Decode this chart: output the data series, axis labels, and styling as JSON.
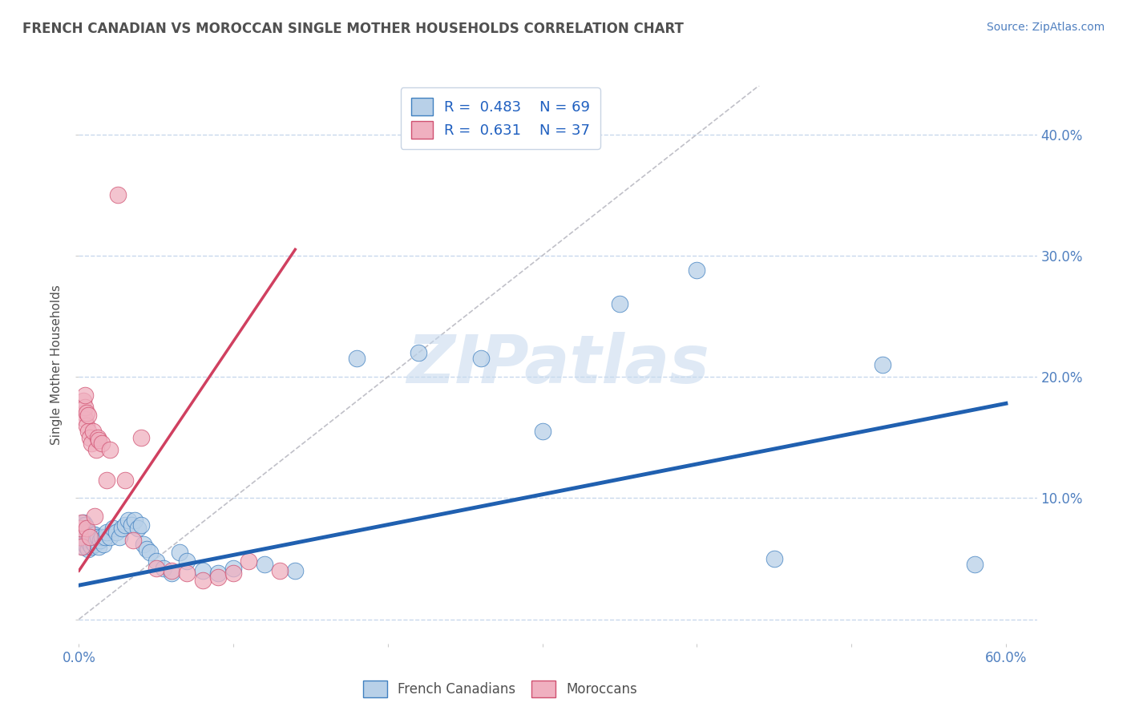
{
  "title": "FRENCH CANADIAN VS MOROCCAN SINGLE MOTHER HOUSEHOLDS CORRELATION CHART",
  "source": "Source: ZipAtlas.com",
  "ylabel": "Single Mother Households",
  "watermark": "ZIPatlas",
  "xlim": [
    0.0,
    0.62
  ],
  "ylim": [
    -0.02,
    0.44
  ],
  "xticks": [
    0.0,
    0.1,
    0.2,
    0.3,
    0.4,
    0.5,
    0.6
  ],
  "xticklabels": [
    "0.0%",
    "",
    "",
    "",
    "",
    "",
    "60.0%"
  ],
  "yticks": [
    0.0,
    0.1,
    0.2,
    0.3,
    0.4
  ],
  "yticklabels_right": [
    "",
    "10.0%",
    "20.0%",
    "30.0%",
    "40.0%"
  ],
  "R_blue": 0.483,
  "N_blue": 69,
  "R_pink": 0.631,
  "N_pink": 37,
  "blue_color": "#b8d0e8",
  "pink_color": "#f0b0c0",
  "blue_edge_color": "#4080c0",
  "pink_edge_color": "#d05070",
  "blue_line_color": "#2060b0",
  "pink_line_color": "#d04060",
  "title_color": "#505050",
  "axis_label_color": "#5080c0",
  "grid_color": "#c8d8ec",
  "legend_text_color": "#2060c0",
  "background_color": "#ffffff",
  "blue_x": [
    0.001,
    0.001,
    0.001,
    0.002,
    0.002,
    0.002,
    0.003,
    0.003,
    0.003,
    0.003,
    0.004,
    0.004,
    0.004,
    0.004,
    0.005,
    0.005,
    0.005,
    0.006,
    0.006,
    0.006,
    0.007,
    0.007,
    0.008,
    0.008,
    0.009,
    0.009,
    0.01,
    0.01,
    0.011,
    0.012,
    0.013,
    0.014,
    0.015,
    0.016,
    0.017,
    0.018,
    0.02,
    0.022,
    0.024,
    0.026,
    0.028,
    0.03,
    0.032,
    0.034,
    0.036,
    0.038,
    0.04,
    0.042,
    0.044,
    0.046,
    0.05,
    0.055,
    0.06,
    0.065,
    0.07,
    0.08,
    0.09,
    0.1,
    0.12,
    0.14,
    0.18,
    0.22,
    0.26,
    0.3,
    0.35,
    0.4,
    0.45,
    0.52,
    0.58
  ],
  "blue_y": [
    0.068,
    0.072,
    0.078,
    0.065,
    0.07,
    0.075,
    0.06,
    0.068,
    0.073,
    0.08,
    0.062,
    0.068,
    0.073,
    0.078,
    0.06,
    0.065,
    0.072,
    0.058,
    0.065,
    0.072,
    0.062,
    0.068,
    0.06,
    0.068,
    0.063,
    0.07,
    0.062,
    0.07,
    0.065,
    0.068,
    0.06,
    0.065,
    0.068,
    0.062,
    0.068,
    0.072,
    0.068,
    0.075,
    0.072,
    0.068,
    0.075,
    0.078,
    0.082,
    0.078,
    0.082,
    0.075,
    0.078,
    0.062,
    0.058,
    0.055,
    0.048,
    0.042,
    0.038,
    0.055,
    0.048,
    0.04,
    0.038,
    0.042,
    0.045,
    0.04,
    0.215,
    0.22,
    0.215,
    0.155,
    0.26,
    0.288,
    0.05,
    0.21,
    0.045
  ],
  "pink_x": [
    0.001,
    0.001,
    0.002,
    0.002,
    0.003,
    0.003,
    0.004,
    0.004,
    0.004,
    0.005,
    0.005,
    0.005,
    0.006,
    0.006,
    0.007,
    0.007,
    0.008,
    0.009,
    0.01,
    0.011,
    0.012,
    0.013,
    0.015,
    0.018,
    0.02,
    0.025,
    0.03,
    0.035,
    0.04,
    0.05,
    0.06,
    0.07,
    0.08,
    0.09,
    0.1,
    0.11,
    0.13
  ],
  "pink_y": [
    0.068,
    0.075,
    0.06,
    0.08,
    0.17,
    0.18,
    0.165,
    0.175,
    0.185,
    0.16,
    0.17,
    0.075,
    0.155,
    0.168,
    0.15,
    0.068,
    0.145,
    0.155,
    0.085,
    0.14,
    0.15,
    0.148,
    0.145,
    0.115,
    0.14,
    0.35,
    0.115,
    0.065,
    0.15,
    0.042,
    0.04,
    0.038,
    0.032,
    0.035,
    0.038,
    0.048,
    0.04
  ],
  "blue_line_x": [
    0.0,
    0.6
  ],
  "blue_line_y": [
    0.028,
    0.178
  ],
  "pink_line_x": [
    0.0,
    0.14
  ],
  "pink_line_y": [
    0.04,
    0.305
  ]
}
